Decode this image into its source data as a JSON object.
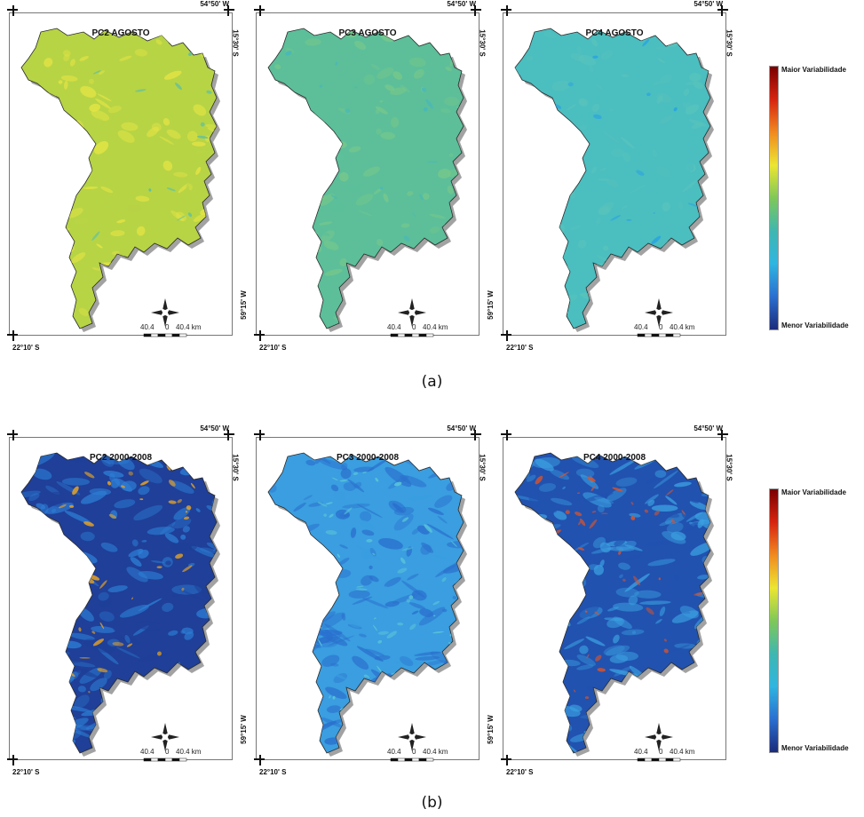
{
  "legend": {
    "max_label": "Maior Variabilidade",
    "min_label": "Menor Variabilidade",
    "colors": [
      "#7a0000",
      "#d62410",
      "#f08a20",
      "#ece632",
      "#7fc859",
      "#3fb7b0",
      "#2fb5e0",
      "#2a6fd0",
      "#1b2b7a"
    ]
  },
  "coords": {
    "lon_top": "54°50' W",
    "lat_top": "15°30' S",
    "lon_bottom": "59°15' W",
    "lat_bottom": "22°10' S"
  },
  "scale_bar": {
    "left": "40.4",
    "mid": "0",
    "right": "40.4 km"
  },
  "rows": [
    {
      "caption": "(a)",
      "panels": [
        {
          "title": "PC2 AGOSTO",
          "base_color": "#b7d445",
          "secondary_color": "#e6e544",
          "accent_color": "#59bfa8"
        },
        {
          "title": "PC3 AGOSTO",
          "base_color": "#5cbf9a",
          "secondary_color": "#78c889",
          "accent_color": "#47b7bb"
        },
        {
          "title": "PC4 AGOSTO",
          "base_color": "#4bbec0",
          "secondary_color": "#58c3bb",
          "accent_color": "#2aa4e0"
        }
      ]
    },
    {
      "caption": "(b)",
      "panels": [
        {
          "title": "PC2 2000-2008",
          "base_color": "#1f3f98",
          "secondary_color": "#2d7ed5",
          "accent_color": "#e3a126"
        },
        {
          "title": "PC3 2000-2008",
          "base_color": "#3a9ee0",
          "secondary_color": "#2a6fcd",
          "accent_color": "#5cc7d8"
        },
        {
          "title": "PC4 2000-2008",
          "base_color": "#2152b0",
          "secondary_color": "#3b9fe0",
          "accent_color": "#d8532a"
        }
      ]
    }
  ]
}
